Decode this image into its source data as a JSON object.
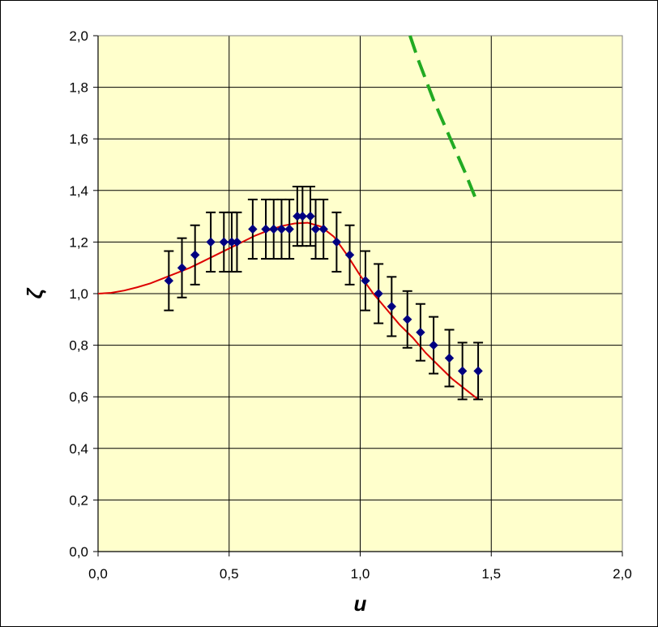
{
  "chart_data": {
    "type": "scatter",
    "title": "",
    "xlabel": "u",
    "ylabel": "ζ",
    "xlim": [
      0.0,
      2.0
    ],
    "ylim": [
      0.0,
      2.0
    ],
    "x_ticks": [
      "0,0",
      "0,5",
      "1,0",
      "1,5",
      "2,0"
    ],
    "x_tick_values": [
      0.0,
      0.5,
      1.0,
      1.5,
      2.0
    ],
    "y_ticks": [
      "0,0",
      "0,2",
      "0,4",
      "0,6",
      "0,8",
      "1,0",
      "1,2",
      "1,4",
      "1,6",
      "1,8",
      "2,0"
    ],
    "y_tick_values": [
      0.0,
      0.2,
      0.4,
      0.6,
      0.8,
      1.0,
      1.2,
      1.4,
      1.6,
      1.8,
      2.0
    ],
    "grid": true,
    "plot_background": "#ffffcc",
    "series": [
      {
        "kind": "points_with_error_bars",
        "color": "#000080",
        "errorbar_color": "#000000",
        "x": [
          0.27,
          0.32,
          0.37,
          0.43,
          0.48,
          0.51,
          0.53,
          0.59,
          0.64,
          0.67,
          0.7,
          0.73,
          0.76,
          0.78,
          0.81,
          0.83,
          0.86,
          0.91,
          0.96,
          1.02,
          1.07,
          1.12,
          1.18,
          1.23,
          1.28,
          1.34,
          1.39,
          1.45
        ],
        "y": [
          1.05,
          1.1,
          1.15,
          1.2,
          1.2,
          1.2,
          1.2,
          1.25,
          1.25,
          1.25,
          1.25,
          1.25,
          1.3,
          1.3,
          1.3,
          1.25,
          1.25,
          1.2,
          1.15,
          1.05,
          1.0,
          0.95,
          0.9,
          0.85,
          0.8,
          0.75,
          0.7,
          0.7
        ],
        "error": [
          0.115,
          0.115,
          0.115,
          0.115,
          0.115,
          0.115,
          0.115,
          0.115,
          0.115,
          0.115,
          0.115,
          0.115,
          0.115,
          0.115,
          0.115,
          0.115,
          0.115,
          0.115,
          0.115,
          0.115,
          0.115,
          0.115,
          0.11,
          0.11,
          0.11,
          0.11,
          0.11,
          0.11
        ]
      },
      {
        "kind": "line",
        "color": "#dd0000",
        "style": "solid",
        "x": [
          0.0,
          0.05,
          0.1,
          0.15,
          0.2,
          0.25,
          0.3,
          0.35,
          0.4,
          0.45,
          0.5,
          0.55,
          0.6,
          0.65,
          0.7,
          0.75,
          0.8,
          0.85,
          0.9,
          0.95,
          1.0,
          1.05,
          1.1,
          1.15,
          1.2,
          1.25,
          1.3,
          1.35,
          1.4,
          1.45
        ],
        "y": [
          1.0,
          1.003,
          1.012,
          1.025,
          1.04,
          1.06,
          1.08,
          1.1,
          1.125,
          1.15,
          1.175,
          1.2,
          1.225,
          1.245,
          1.262,
          1.272,
          1.275,
          1.26,
          1.22,
          1.15,
          1.07,
          1.0,
          0.94,
          0.88,
          0.83,
          0.77,
          0.72,
          0.67,
          0.63,
          0.59
        ]
      },
      {
        "kind": "line",
        "color": "#22aa22",
        "style": "dashed",
        "x": [
          1.19,
          1.22,
          1.25,
          1.28,
          1.31,
          1.34,
          1.37,
          1.4,
          1.44
        ],
        "y": [
          2.0,
          1.91,
          1.83,
          1.75,
          1.68,
          1.61,
          1.54,
          1.47,
          1.37
        ]
      }
    ]
  }
}
